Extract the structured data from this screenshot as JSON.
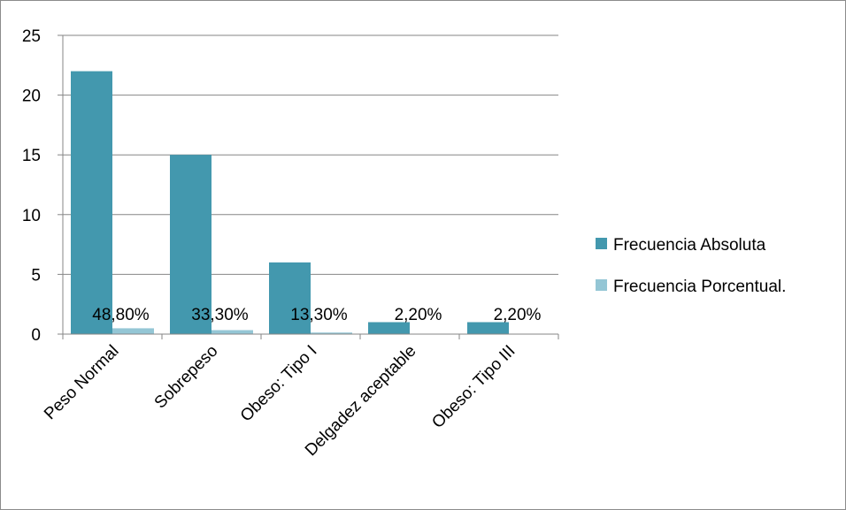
{
  "chart_data": {
    "type": "bar",
    "categories": [
      "Peso Normal",
      "Sobrepeso",
      "Obeso: Tipo I",
      "Delgadez aceptable",
      "Obeso: Tipo III"
    ],
    "series": [
      {
        "name": "Frecuencia Absoluta",
        "values": [
          22,
          15,
          6,
          1,
          1
        ],
        "color": "#4398ae"
      },
      {
        "name": "Frecuencia Porcentual.",
        "values": [
          0.488,
          0.333,
          0.133,
          0.022,
          0.022
        ],
        "labels": [
          "48,80%",
          "33,30%",
          "13,30%",
          "2,20%",
          "2,20%"
        ],
        "color": "#94c6d5"
      }
    ],
    "yticks": [
      "0",
      "5",
      "10",
      "15",
      "20",
      "25"
    ],
    "ylim": [
      0,
      25
    ],
    "grid": true,
    "legend_position": "right"
  }
}
